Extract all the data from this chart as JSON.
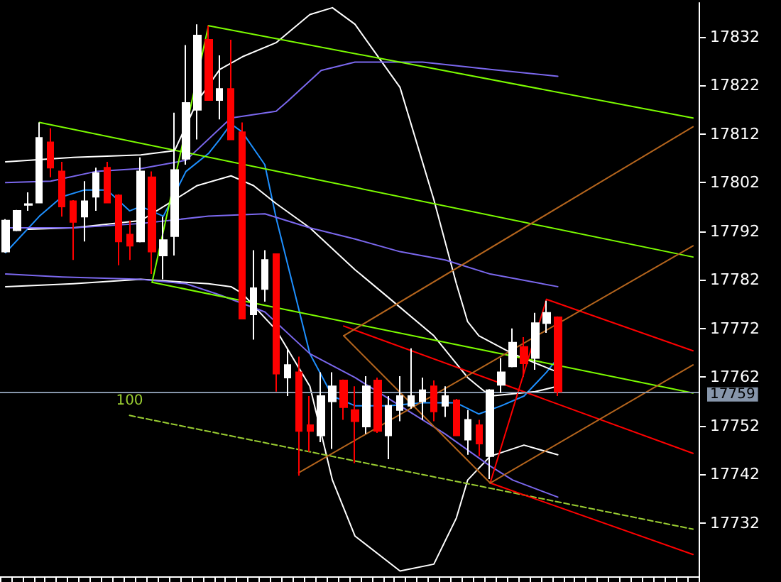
{
  "chart_data": {
    "type": "candlestick",
    "tick_labels": "y",
    "grid": false,
    "categories": [
      null,
      null,
      null,
      null,
      null,
      null,
      null,
      null,
      null,
      null,
      null,
      null,
      null,
      null,
      null,
      null,
      null,
      null,
      null,
      null,
      null,
      null,
      null,
      null,
      null,
      null,
      null,
      null,
      null,
      null,
      null,
      null,
      null,
      null,
      null,
      null,
      null,
      null,
      null,
      null,
      null,
      null,
      null,
      null,
      null,
      null,
      null,
      null,
      null,
      null,
      null,
      null,
      null,
      null,
      null,
      null,
      null,
      null,
      null,
      null,
      null,
      null
    ],
    "ylim": [
      17721,
      17839
    ],
    "yticks": [
      17732,
      17742,
      17752,
      17762,
      17772,
      17782,
      17792,
      17802,
      17812,
      17822,
      17832
    ],
    "ohlc": [
      [
        17787.8,
        17794.5,
        17787.6,
        17794.2
      ],
      [
        17792.2,
        17796.4,
        17792.0,
        17796.2
      ],
      [
        17797.4,
        17800.0,
        17796.2,
        17797.6
      ],
      [
        17797.9,
        17814.4,
        17797.9,
        17811.2
      ],
      [
        17810.3,
        17813.2,
        17803.1,
        17805.1
      ],
      [
        17804.3,
        17806.3,
        17795.0,
        17797.1
      ],
      [
        17798.2,
        17798.4,
        17786.1,
        17793.9
      ],
      [
        17795.0,
        17802.3,
        17789.9,
        17798.2
      ],
      [
        17799.1,
        17805.1,
        17796.2,
        17804.0
      ],
      [
        17805.1,
        17806.3,
        17797.9,
        17797.9
      ],
      [
        17799.4,
        17799.6,
        17785.0,
        17789.9
      ],
      [
        17791.3,
        17794.2,
        17786.1,
        17789.0
      ],
      [
        17789.9,
        17807.2,
        17789.7,
        17804.3
      ],
      [
        17803.1,
        17804.3,
        17783.2,
        17787.8
      ],
      [
        17787.0,
        17795.0,
        17782.1,
        17790.2
      ],
      [
        17791.0,
        17816.4,
        17787.0,
        17804.6
      ],
      [
        17806.9,
        17830.3,
        17805.7,
        17818.4
      ],
      [
        17817.0,
        17834.6,
        17810.9,
        17832.3
      ],
      [
        17831.4,
        17834.3,
        17819.0,
        17819.0
      ],
      [
        17819.0,
        17828.2,
        17815.0,
        17821.3
      ],
      [
        17821.3,
        17831.4,
        17810.9,
        17810.9
      ],
      [
        17812.4,
        17814.4,
        17774.0,
        17774.0
      ],
      [
        17774.9,
        17788.1,
        17769.7,
        17780.3
      ],
      [
        17780.1,
        17788.1,
        17777.5,
        17786.1
      ],
      [
        17787.3,
        17787.3,
        17759.0,
        17762.7
      ],
      [
        17761.9,
        17767.9,
        17758.1,
        17764.5
      ],
      [
        17763.0,
        17766.2,
        17741.7,
        17750.9
      ],
      [
        17752.1,
        17758.1,
        17746.6,
        17750.9
      ],
      [
        17750.0,
        17763.0,
        17748.6,
        17758.1
      ],
      [
        17757.0,
        17763.0,
        17747.2,
        17760.1
      ],
      [
        17761.3,
        17761.5,
        17753.2,
        17755.8
      ],
      [
        17755.2,
        17760.1,
        17744.3,
        17752.9
      ],
      [
        17751.8,
        17762.2,
        17750.3,
        17760.1
      ],
      [
        17761.3,
        17761.9,
        17750.5,
        17750.9
      ],
      [
        17750.0,
        17758.1,
        17745.1,
        17756.1
      ],
      [
        17755.2,
        17762.2,
        17752.9,
        17758.1
      ],
      [
        17756.1,
        17767.9,
        17755.5,
        17758.1
      ],
      [
        17757.0,
        17761.9,
        17753.2,
        17759.3
      ],
      [
        17760.1,
        17761.3,
        17752.9,
        17754.9
      ],
      [
        17756.1,
        17760.1,
        17753.8,
        17758.1
      ],
      [
        17757.2,
        17757.5,
        17750.0,
        17750.0
      ],
      [
        17749.1,
        17755.2,
        17746.0,
        17753.2
      ],
      [
        17752.1,
        17753.2,
        17745.7,
        17748.3
      ],
      [
        17745.7,
        17759.5,
        17741.0,
        17759.3
      ],
      [
        17760.4,
        17765.9,
        17758.7,
        17763.0
      ],
      [
        17764.2,
        17772.0,
        17764.0,
        17769.1
      ],
      [
        17768.2,
        17770.2,
        17762.0,
        17764.8
      ],
      [
        17765.9,
        17775.2,
        17763.5,
        17773.1
      ],
      [
        17773.1,
        17777.7,
        17771.1,
        17775.2
      ],
      [
        17774.3,
        17774.5,
        17758.1,
        17759.0
      ],
      null,
      null,
      null,
      null,
      null,
      null,
      null,
      null,
      null,
      null,
      null,
      null
    ],
    "colors": [
      "#ffffff",
      "#ffffff",
      "#ffffff",
      "#ffffff",
      "#ff0000",
      "#ff0000",
      "#ff0000",
      "#ffffff",
      "#ffffff",
      "#ff0000",
      "#ff0000",
      "#ff0000",
      "#ffffff",
      "#ff0000",
      "#ffffff",
      "#ffffff",
      "#ffffff",
      "#ffffff",
      "#ff0000",
      "#ffffff",
      "#ff0000",
      "#ff0000",
      "#ffffff",
      "#ffffff",
      "#ff0000",
      "#ffffff",
      "#ff0000",
      "#ff0000",
      "#ffffff",
      "#ffffff",
      "#ff0000",
      "#ff0000",
      "#ffffff",
      "#ff0000",
      "#ffffff",
      "#ffffff",
      "#ffffff",
      "#ffffff",
      "#ff0000",
      "#ffffff",
      "#ff0000",
      "#ffffff",
      "#ff0000",
      "#ffffff",
      "#ffffff",
      "#ffffff",
      "#ff0000",
      "#ffffff",
      "#ffffff",
      "#ff0000",
      null,
      null,
      null,
      null,
      null,
      null,
      null,
      null,
      null,
      null,
      null,
      null
    ],
    "series": [
      {
        "type": "line",
        "color": "#1e90ff",
        "values": [
          17787.6,
          null,
          null,
          17795.1,
          null,
          17799.1,
          null,
          17800.5,
          null,
          17800.5,
          null,
          17796.2,
          17797.1,
          null,
          17795.1,
          null,
          17804.3,
          null,
          17808.0,
          17810.9,
          17814.1,
          17812.4,
          null,
          17805.7,
          17794.8,
          null,
          null,
          17766.8,
          null,
          17758.1,
          null,
          17756.1,
          null,
          null,
          17756.1,
          null,
          null,
          17756.7,
          null,
          null,
          17756.7,
          null,
          17754.4,
          null,
          17756.1,
          null,
          17758.1,
          null,
          17763.0,
          17765.9,
          null,
          null,
          null,
          null,
          null,
          null,
          null,
          null,
          null,
          null,
          null,
          null
        ]
      },
      {
        "type": "line",
        "color": "#ffffff",
        "values": [
          17806.3,
          null,
          null,
          null,
          null,
          null,
          17807.2,
          null,
          null,
          null,
          null,
          null,
          17807.7,
          null,
          null,
          17808.6,
          null,
          17818.7,
          null,
          17825.3,
          null,
          17827.9,
          null,
          null,
          17830.8,
          null,
          null,
          17836.6,
          null,
          17838.0,
          null,
          17834.6,
          null,
          null,
          null,
          17821.6,
          null,
          null,
          17798.5,
          null,
          17781.2,
          17773.4,
          17770.5,
          null,
          null,
          17766.8,
          null,
          null,
          null,
          17763.0,
          null,
          null,
          null,
          null,
          null,
          null,
          null,
          null,
          null,
          null,
          null,
          null
        ]
      },
      {
        "type": "line",
        "color": "#ffffff",
        "values": [
          null,
          null,
          17792.4,
          null,
          null,
          null,
          17792.7,
          null,
          null,
          null,
          null,
          null,
          17794.2,
          null,
          null,
          17798.5,
          null,
          17801.4,
          null,
          null,
          17803.4,
          null,
          17801.4,
          null,
          17797.7,
          null,
          null,
          17792.7,
          null,
          null,
          null,
          17784.1,
          null,
          null,
          17778.3,
          null,
          null,
          null,
          17770.5,
          null,
          null,
          17761.9,
          null,
          17758.1,
          null,
          null,
          null,
          17759.0,
          null,
          17760.1,
          null,
          null,
          null,
          null,
          null,
          null,
          null,
          null,
          null,
          null,
          null,
          null
        ]
      },
      {
        "type": "line",
        "color": "#ffffff",
        "values": [
          17780.6,
          null,
          null,
          null,
          null,
          null,
          17781.2,
          null,
          null,
          null,
          null,
          null,
          17782.1,
          null,
          null,
          null,
          null,
          null,
          17781.2,
          null,
          17780.6,
          17779.2,
          null,
          null,
          17771.7,
          null,
          null,
          17760.1,
          null,
          17740.8,
          null,
          17729.3,
          null,
          null,
          null,
          17722.1,
          null,
          null,
          17723.5,
          null,
          17733.0,
          17740.8,
          null,
          17745.7,
          null,
          null,
          17748.0,
          null,
          null,
          17746.0,
          null,
          null,
          null,
          null,
          null,
          null,
          null,
          null,
          null,
          null,
          null,
          null
        ]
      },
      {
        "type": "line",
        "color": "#7b68ee",
        "values": [
          17802.0,
          null,
          null,
          null,
          17802.3,
          null,
          null,
          null,
          17804.3,
          null,
          null,
          null,
          17804.9,
          null,
          null,
          null,
          17806.6,
          null,
          null,
          null,
          17815.3,
          null,
          null,
          null,
          17816.7,
          17818.7,
          null,
          null,
          17825.1,
          null,
          null,
          17826.8,
          null,
          null,
          null,
          null,
          null,
          17826.8,
          null,
          null,
          null,
          null,
          null,
          17825.3,
          null,
          null,
          null,
          null,
          null,
          17823.9,
          null,
          null,
          null,
          null,
          null,
          null,
          null,
          null,
          null,
          null,
          null,
          null
        ]
      },
      {
        "type": "line",
        "color": "#7b68ee",
        "values": [
          17792.7,
          null,
          null,
          null,
          null,
          null,
          17792.7,
          null,
          null,
          null,
          null,
          null,
          17793.6,
          null,
          null,
          null,
          null,
          null,
          17795.1,
          null,
          null,
          null,
          null,
          17795.6,
          null,
          null,
          null,
          17792.7,
          null,
          null,
          null,
          17790.4,
          null,
          null,
          null,
          17787.8,
          null,
          null,
          null,
          17786.1,
          null,
          null,
          null,
          17783.2,
          null,
          null,
          null,
          null,
          null,
          17780.6,
          null,
          null,
          null,
          null,
          null,
          null,
          null,
          null,
          null,
          null,
          null,
          null
        ]
      },
      {
        "type": "line",
        "color": "#7b68ee",
        "values": [
          17783.2,
          null,
          null,
          null,
          null,
          17782.6,
          null,
          null,
          null,
          null,
          null,
          null,
          17782.1,
          null,
          null,
          null,
          17781.2,
          null,
          null,
          17778.9,
          null,
          null,
          null,
          17775.4,
          null,
          null,
          null,
          17766.8,
          null,
          null,
          null,
          17761.9,
          null,
          null,
          null,
          17756.1,
          null,
          null,
          null,
          17750.3,
          null,
          null,
          null,
          17743.7,
          null,
          17740.8,
          null,
          null,
          null,
          17737.3,
          null,
          null,
          null,
          null,
          null,
          null,
          null,
          null,
          null,
          null,
          null,
          null
        ]
      },
      {
        "type": "line",
        "color": "#7cfc00",
        "values": [
          null,
          null,
          null,
          17814.4,
          null,
          null,
          null,
          null,
          null,
          null,
          null,
          null,
          null,
          null,
          null,
          null,
          null,
          null,
          null,
          null,
          null,
          null,
          null,
          null,
          null,
          null,
          null,
          null,
          null,
          null,
          null,
          null,
          null,
          null,
          null,
          null,
          null,
          null,
          null,
          null,
          null,
          null,
          null,
          null,
          null,
          null,
          null,
          null,
          null,
          null,
          null,
          null,
          null,
          null,
          null,
          null,
          null,
          null,
          null,
          null,
          null,
          17786.7
        ]
      },
      {
        "type": "line",
        "color": "#7cfc00",
        "values": [
          null,
          null,
          null,
          null,
          null,
          null,
          null,
          null,
          null,
          null,
          null,
          null,
          null,
          null,
          null,
          null,
          null,
          null,
          17834.3,
          null,
          null,
          null,
          null,
          null,
          null,
          null,
          null,
          null,
          null,
          null,
          null,
          null,
          null,
          null,
          null,
          null,
          null,
          null,
          null,
          null,
          null,
          null,
          null,
          null,
          null,
          null,
          null,
          null,
          null,
          null,
          null,
          null,
          null,
          null,
          null,
          null,
          null,
          null,
          null,
          null,
          null,
          17815.3
        ]
      },
      {
        "type": "line",
        "color": "#7cfc00",
        "values": [
          null,
          null,
          null,
          null,
          null,
          null,
          null,
          null,
          null,
          null,
          null,
          null,
          null,
          17781.5,
          null,
          null,
          null,
          null,
          null,
          null,
          null,
          null,
          null,
          null,
          null,
          null,
          null,
          null,
          null,
          null,
          null,
          null,
          null,
          null,
          null,
          null,
          null,
          null,
          null,
          null,
          null,
          null,
          null,
          null,
          null,
          null,
          null,
          null,
          null,
          null,
          null,
          null,
          null,
          null,
          null,
          null,
          null,
          null,
          null,
          null,
          null,
          17758.7
        ]
      },
      {
        "type": "line",
        "color": "#7cfc00",
        "values": [
          null,
          null,
          null,
          null,
          null,
          null,
          null,
          null,
          null,
          null,
          null,
          null,
          null,
          17781.5,
          null,
          null,
          null,
          null,
          17834.3,
          null,
          null,
          null,
          null,
          null,
          null,
          null,
          null,
          null,
          null,
          null,
          null,
          null,
          null,
          null,
          null,
          null,
          null,
          null,
          null,
          null,
          null,
          null,
          null,
          null,
          null,
          null,
          null,
          null,
          null,
          null,
          null,
          null,
          null,
          null,
          null,
          null,
          null,
          null,
          null,
          null,
          null,
          null
        ]
      },
      {
        "type": "line",
        "name": "100",
        "color": "#9acd32",
        "line_style": "dashed",
        "values": [
          null,
          null,
          null,
          null,
          null,
          null,
          null,
          null,
          null,
          null,
          null,
          17754.1,
          null,
          null,
          null,
          null,
          null,
          null,
          null,
          null,
          null,
          null,
          null,
          null,
          null,
          null,
          null,
          null,
          null,
          null,
          null,
          null,
          null,
          null,
          null,
          null,
          null,
          null,
          null,
          null,
          null,
          null,
          null,
          null,
          null,
          null,
          null,
          null,
          null,
          null,
          null,
          null,
          null,
          null,
          null,
          null,
          null,
          null,
          null,
          null,
          null,
          17730.7
        ]
      },
      {
        "type": "line",
        "color": "#ff0000",
        "values": [
          null,
          null,
          null,
          null,
          null,
          null,
          null,
          null,
          null,
          null,
          null,
          null,
          null,
          null,
          null,
          null,
          null,
          null,
          null,
          null,
          null,
          null,
          null,
          null,
          null,
          null,
          null,
          null,
          null,
          null,
          17772.5,
          null,
          null,
          null,
          null,
          null,
          null,
          null,
          null,
          null,
          null,
          null,
          null,
          null,
          null,
          null,
          null,
          null,
          null,
          null,
          null,
          null,
          null,
          null,
          null,
          null,
          null,
          null,
          null,
          null,
          null,
          17746.3
        ]
      },
      {
        "type": "line",
        "color": "#ff0000",
        "values": [
          null,
          null,
          null,
          null,
          null,
          null,
          null,
          null,
          null,
          null,
          null,
          null,
          null,
          null,
          null,
          null,
          null,
          null,
          null,
          null,
          null,
          null,
          null,
          null,
          null,
          null,
          null,
          null,
          null,
          null,
          null,
          null,
          null,
          null,
          null,
          null,
          null,
          null,
          null,
          null,
          null,
          null,
          null,
          null,
          null,
          null,
          null,
          null,
          17778.0,
          null,
          null,
          null,
          null,
          null,
          null,
          null,
          null,
          null,
          null,
          null,
          null,
          17767.4
        ]
      },
      {
        "type": "line",
        "color": "#ff0000",
        "values": [
          null,
          null,
          null,
          null,
          null,
          null,
          null,
          null,
          null,
          null,
          null,
          null,
          null,
          null,
          null,
          null,
          null,
          null,
          null,
          null,
          null,
          null,
          null,
          null,
          null,
          null,
          null,
          null,
          null,
          null,
          null,
          null,
          null,
          null,
          null,
          null,
          null,
          null,
          null,
          null,
          null,
          null,
          null,
          17740.2,
          null,
          null,
          null,
          null,
          null,
          null,
          null,
          null,
          null,
          null,
          null,
          null,
          null,
          null,
          null,
          null,
          null,
          17725.5
        ]
      },
      {
        "type": "line",
        "color": "#ff0000",
        "values": [
          null,
          null,
          null,
          null,
          null,
          null,
          null,
          null,
          null,
          null,
          null,
          null,
          null,
          null,
          null,
          null,
          null,
          null,
          null,
          null,
          null,
          null,
          null,
          null,
          null,
          null,
          null,
          null,
          null,
          null,
          null,
          null,
          null,
          null,
          null,
          null,
          null,
          null,
          null,
          null,
          null,
          null,
          null,
          17740.2,
          null,
          null,
          null,
          null,
          17778.0,
          null,
          null,
          null,
          null,
          null,
          null,
          null,
          null,
          null,
          null,
          null,
          null,
          null
        ]
      },
      {
        "type": "line",
        "color": "#b5651d",
        "values": [
          null,
          null,
          null,
          null,
          null,
          null,
          null,
          null,
          null,
          null,
          null,
          null,
          null,
          null,
          null,
          null,
          null,
          null,
          null,
          null,
          null,
          null,
          null,
          null,
          null,
          null,
          null,
          null,
          null,
          null,
          17770.5,
          null,
          null,
          null,
          null,
          null,
          null,
          null,
          null,
          null,
          null,
          null,
          null,
          null,
          null,
          null,
          null,
          null,
          null,
          null,
          null,
          null,
          null,
          null,
          null,
          null,
          null,
          null,
          null,
          null,
          null,
          17813.5
        ]
      },
      {
        "type": "line",
        "color": "#b5651d",
        "values": [
          null,
          null,
          null,
          null,
          null,
          null,
          null,
          null,
          null,
          null,
          null,
          null,
          null,
          null,
          null,
          null,
          null,
          null,
          null,
          null,
          null,
          null,
          null,
          null,
          null,
          null,
          17742.3,
          null,
          null,
          null,
          null,
          null,
          null,
          null,
          null,
          null,
          null,
          null,
          null,
          null,
          null,
          null,
          null,
          null,
          null,
          null,
          null,
          null,
          null,
          null,
          null,
          null,
          null,
          null,
          null,
          null,
          null,
          null,
          null,
          null,
          null,
          17789.0
        ]
      },
      {
        "type": "line",
        "color": "#b5651d",
        "values": [
          null,
          null,
          null,
          null,
          null,
          null,
          null,
          null,
          null,
          null,
          null,
          null,
          null,
          null,
          null,
          null,
          null,
          null,
          null,
          null,
          null,
          null,
          null,
          null,
          null,
          null,
          null,
          null,
          null,
          null,
          null,
          null,
          null,
          null,
          null,
          null,
          null,
          null,
          null,
          null,
          null,
          null,
          null,
          17740.2,
          null,
          null,
          null,
          null,
          null,
          null,
          null,
          null,
          null,
          null,
          null,
          null,
          null,
          null,
          null,
          null,
          null,
          17764.5
        ]
      },
      {
        "type": "line",
        "color": "#b5651d",
        "values": [
          null,
          null,
          null,
          null,
          null,
          null,
          null,
          null,
          null,
          null,
          null,
          null,
          null,
          null,
          null,
          null,
          null,
          null,
          null,
          null,
          null,
          null,
          null,
          null,
          null,
          null,
          null,
          null,
          null,
          null,
          17770.5,
          null,
          null,
          null,
          null,
          null,
          null,
          null,
          null,
          null,
          null,
          null,
          null,
          17740.2,
          null,
          null,
          null,
          null,
          null,
          null,
          null,
          null,
          null,
          null,
          null,
          null,
          null,
          null,
          null,
          null,
          null,
          null
        ]
      }
    ],
    "ref_lines": [
      {
        "axis": "y",
        "value": 17759,
        "label": "17759",
        "color": "#8796ab"
      }
    ]
  }
}
